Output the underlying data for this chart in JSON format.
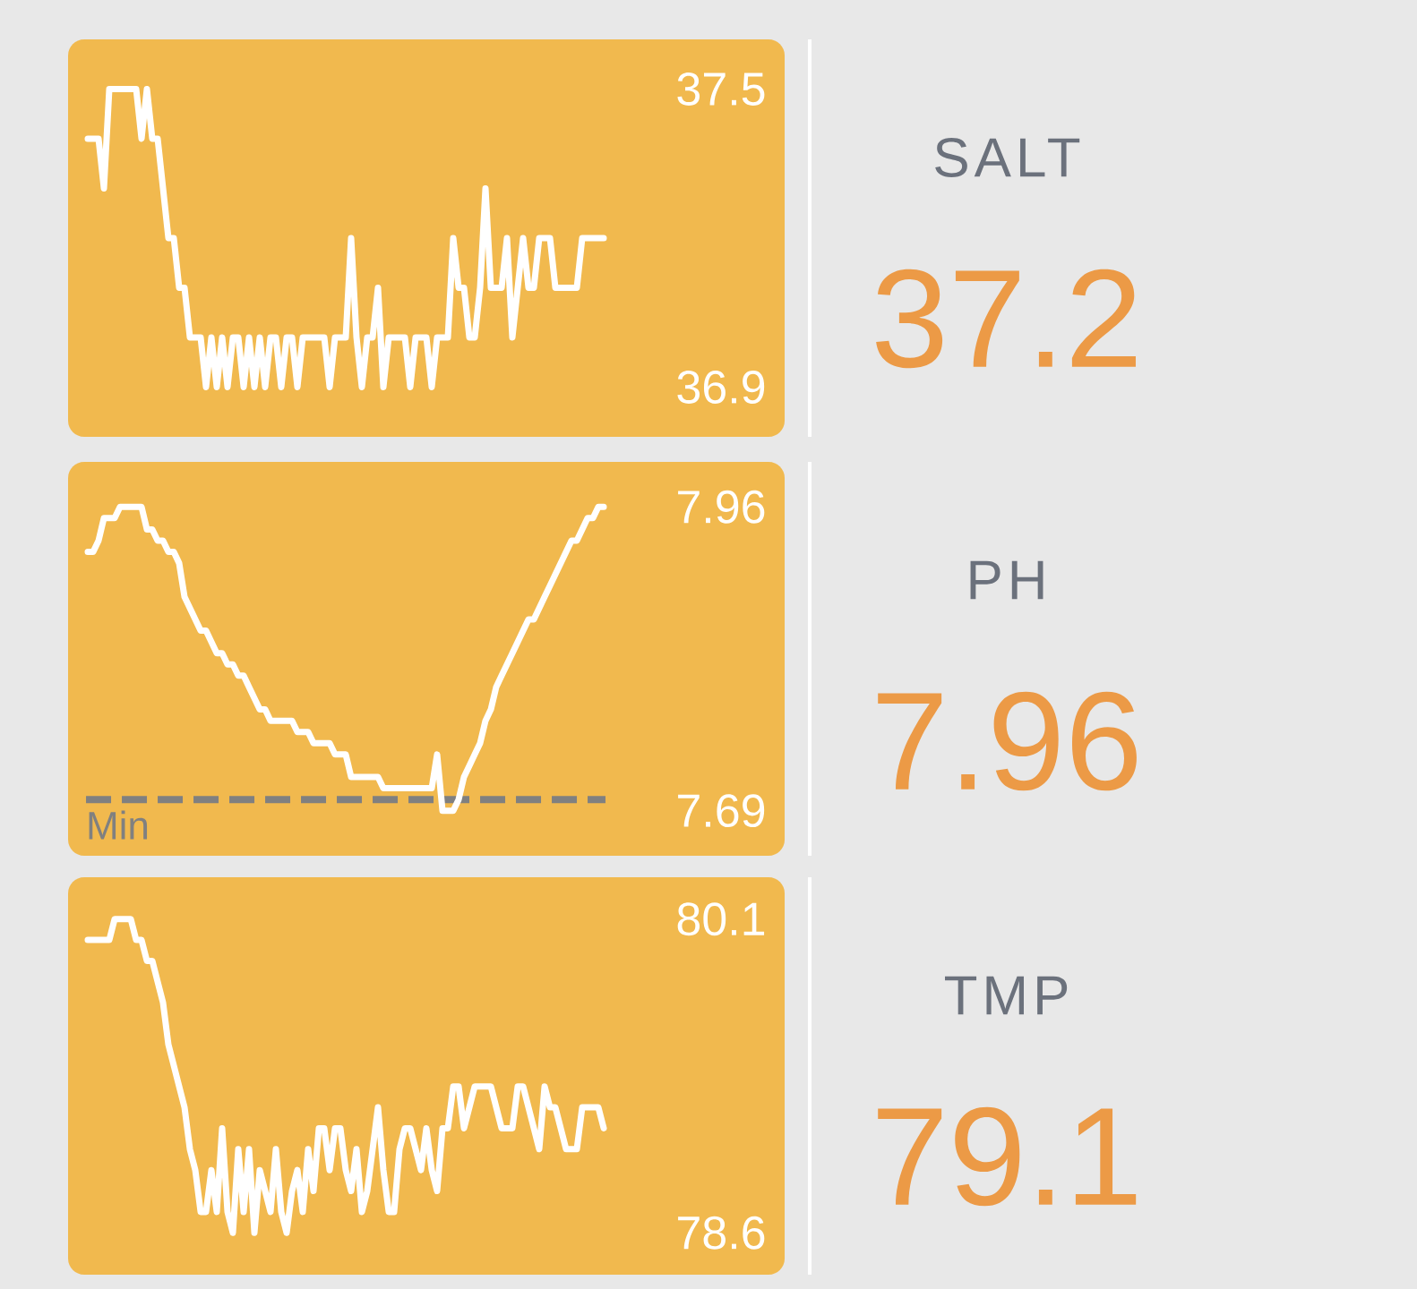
{
  "chart_data": [
    {
      "type": "line",
      "tick_labels": "y",
      "categories": [
        null,
        null,
        null,
        null,
        null,
        null,
        null,
        null,
        null,
        null,
        null,
        null,
        null,
        null,
        null,
        null,
        null,
        null,
        null,
        null,
        null,
        null,
        null,
        null,
        null,
        null,
        null,
        null,
        null,
        null,
        null,
        null,
        null,
        null,
        null,
        null,
        null,
        null,
        null,
        null,
        null,
        null,
        null,
        null,
        null,
        null,
        null,
        null,
        null,
        null,
        null,
        null,
        null,
        null,
        null,
        null,
        null,
        null,
        null,
        null,
        null,
        null,
        null,
        null,
        null,
        null,
        null,
        null,
        null,
        null,
        null,
        null,
        null,
        null,
        null,
        null,
        null,
        null,
        null,
        null,
        null,
        null,
        null,
        null,
        null,
        null,
        null,
        null,
        null,
        null,
        null,
        null,
        null,
        null,
        null,
        null,
        null
      ],
      "series": [
        {
          "color": "#ffffff",
          "values": [
            37.4,
            37.4,
            37.4,
            37.3,
            37.5,
            37.5,
            37.5,
            37.5,
            37.5,
            37.5,
            37.4,
            37.5,
            37.4,
            37.4,
            37.3,
            37.2,
            37.2,
            37.1,
            37.1,
            37.0,
            37.0,
            37.0,
            36.9,
            37.0,
            36.9,
            37.0,
            36.9,
            37.0,
            37.0,
            36.9,
            37.0,
            36.9,
            37.0,
            36.9,
            37.0,
            37.0,
            36.9,
            37.0,
            37.0,
            36.9,
            37.0,
            37.0,
            37.0,
            37.0,
            37.0,
            36.9,
            37.0,
            37.0,
            37.0,
            37.2,
            37.0,
            36.9,
            37.0,
            37.0,
            37.1,
            36.9,
            37.0,
            37.0,
            37.0,
            37.0,
            36.9,
            37.0,
            37.0,
            37.0,
            36.9,
            37.0,
            37.0,
            37.0,
            37.2,
            37.1,
            37.1,
            37.0,
            37.0,
            37.1,
            37.3,
            37.1,
            37.1,
            37.1,
            37.2,
            37.0,
            37.1,
            37.2,
            37.1,
            37.1,
            37.2,
            37.2,
            37.2,
            37.1,
            37.1,
            37.1,
            37.1,
            37.1,
            37.2,
            37.2,
            37.2,
            37.2,
            37.2
          ]
        }
      ],
      "ylim": [
        36.8,
        37.6
      ],
      "yticks": [
        36.9,
        37.5
      ]
    },
    {
      "type": "other",
      "title": "SALT",
      "annotations": [
        "37.2"
      ]
    },
    {
      "type": "line",
      "tick_labels": "y",
      "categories": [
        null,
        null,
        null,
        null,
        null,
        null,
        null,
        null,
        null,
        null,
        null,
        null,
        null,
        null,
        null,
        null,
        null,
        null,
        null,
        null,
        null,
        null,
        null,
        null,
        null,
        null,
        null,
        null,
        null,
        null,
        null,
        null,
        null,
        null,
        null,
        null,
        null,
        null,
        null,
        null,
        null,
        null,
        null,
        null,
        null,
        null,
        null,
        null,
        null,
        null,
        null,
        null,
        null,
        null,
        null,
        null,
        null,
        null,
        null,
        null,
        null,
        null,
        null,
        null,
        null,
        null,
        null,
        null,
        null,
        null,
        null,
        null,
        null,
        null,
        null,
        null,
        null,
        null,
        null,
        null,
        null,
        null,
        null,
        null,
        null,
        null,
        null,
        null,
        null,
        null,
        null,
        null,
        null,
        null,
        null,
        null,
        null
      ],
      "series": [
        {
          "color": "#ffffff",
          "values": [
            7.92,
            7.92,
            7.93,
            7.95,
            7.95,
            7.95,
            7.96,
            7.96,
            7.96,
            7.96,
            7.96,
            7.94,
            7.94,
            7.93,
            7.93,
            7.92,
            7.92,
            7.91,
            7.88,
            7.87,
            7.86,
            7.85,
            7.85,
            7.84,
            7.83,
            7.83,
            7.82,
            7.82,
            7.81,
            7.81,
            7.8,
            7.79,
            7.78,
            7.78,
            7.77,
            7.77,
            7.77,
            7.77,
            7.77,
            7.76,
            7.76,
            7.76,
            7.75,
            7.75,
            7.75,
            7.75,
            7.74,
            7.74,
            7.74,
            7.72,
            7.72,
            7.72,
            7.72,
            7.72,
            7.72,
            7.71,
            7.71,
            7.71,
            7.71,
            7.71,
            7.71,
            7.71,
            7.71,
            7.71,
            7.71,
            7.74,
            7.69,
            7.69,
            7.69,
            7.7,
            7.72,
            7.73,
            7.74,
            7.75,
            7.77,
            7.78,
            7.8,
            7.81,
            7.82,
            7.83,
            7.84,
            7.85,
            7.86,
            7.86,
            7.87,
            7.88,
            7.89,
            7.9,
            7.91,
            7.92,
            7.93,
            7.93,
            7.94,
            7.95,
            7.95,
            7.96,
            7.96
          ]
        }
      ],
      "ylim": [
        7.65,
        8.0
      ],
      "yticks": [
        7.69,
        7.96
      ],
      "ref_lines": [
        {
          "axis": "y",
          "value": 7.7,
          "label": "Min",
          "color": "#808080",
          "line_style": "dashed"
        }
      ]
    },
    {
      "type": "other",
      "title": "PH",
      "annotations": [
        "7.96"
      ]
    },
    {
      "type": "line",
      "tick_labels": "y",
      "categories": [
        null,
        null,
        null,
        null,
        null,
        null,
        null,
        null,
        null,
        null,
        null,
        null,
        null,
        null,
        null,
        null,
        null,
        null,
        null,
        null,
        null,
        null,
        null,
        null,
        null,
        null,
        null,
        null,
        null,
        null,
        null,
        null,
        null,
        null,
        null,
        null,
        null,
        null,
        null,
        null,
        null,
        null,
        null,
        null,
        null,
        null,
        null,
        null,
        null,
        null,
        null,
        null,
        null,
        null,
        null,
        null,
        null,
        null,
        null,
        null,
        null,
        null,
        null,
        null,
        null,
        null,
        null,
        null,
        null,
        null,
        null,
        null,
        null,
        null,
        null,
        null,
        null,
        null,
        null,
        null,
        null,
        null,
        null,
        null,
        null,
        null,
        null,
        null,
        null,
        null,
        null,
        null,
        null,
        null,
        null,
        null,
        null
      ],
      "series": [
        {
          "color": "#ffffff",
          "values": [
            80.0,
            80.0,
            80.0,
            80.0,
            80.0,
            80.1,
            80.1,
            80.1,
            80.1,
            80.0,
            80.0,
            79.9,
            79.9,
            79.8,
            79.7,
            79.5,
            79.4,
            79.3,
            79.2,
            79.0,
            78.9,
            78.7,
            78.7,
            78.9,
            78.7,
            79.1,
            78.7,
            78.6,
            79.0,
            78.7,
            79.0,
            78.6,
            78.9,
            78.8,
            78.7,
            79.0,
            78.7,
            78.6,
            78.8,
            78.9,
            78.7,
            79.0,
            78.8,
            79.1,
            79.1,
            78.9,
            79.1,
            79.1,
            78.9,
            78.8,
            79.0,
            78.7,
            78.8,
            79.0,
            79.2,
            78.9,
            78.7,
            78.7,
            79.0,
            79.1,
            79.1,
            79.0,
            78.9,
            79.1,
            78.9,
            78.8,
            79.1,
            79.1,
            79.3,
            79.3,
            79.1,
            79.2,
            79.3,
            79.3,
            79.3,
            79.3,
            79.2,
            79.1,
            79.1,
            79.1,
            79.3,
            79.3,
            79.2,
            79.1,
            79.0,
            79.3,
            79.2,
            79.2,
            79.1,
            79.0,
            79.0,
            79.0,
            79.2,
            79.2,
            79.2,
            79.2,
            79.1
          ]
        }
      ],
      "ylim": [
        78.4,
        80.3
      ],
      "yticks": [
        78.6,
        80.1
      ]
    },
    {
      "type": "other",
      "title": "TMP",
      "annotations": [
        "79.1"
      ]
    }
  ]
}
